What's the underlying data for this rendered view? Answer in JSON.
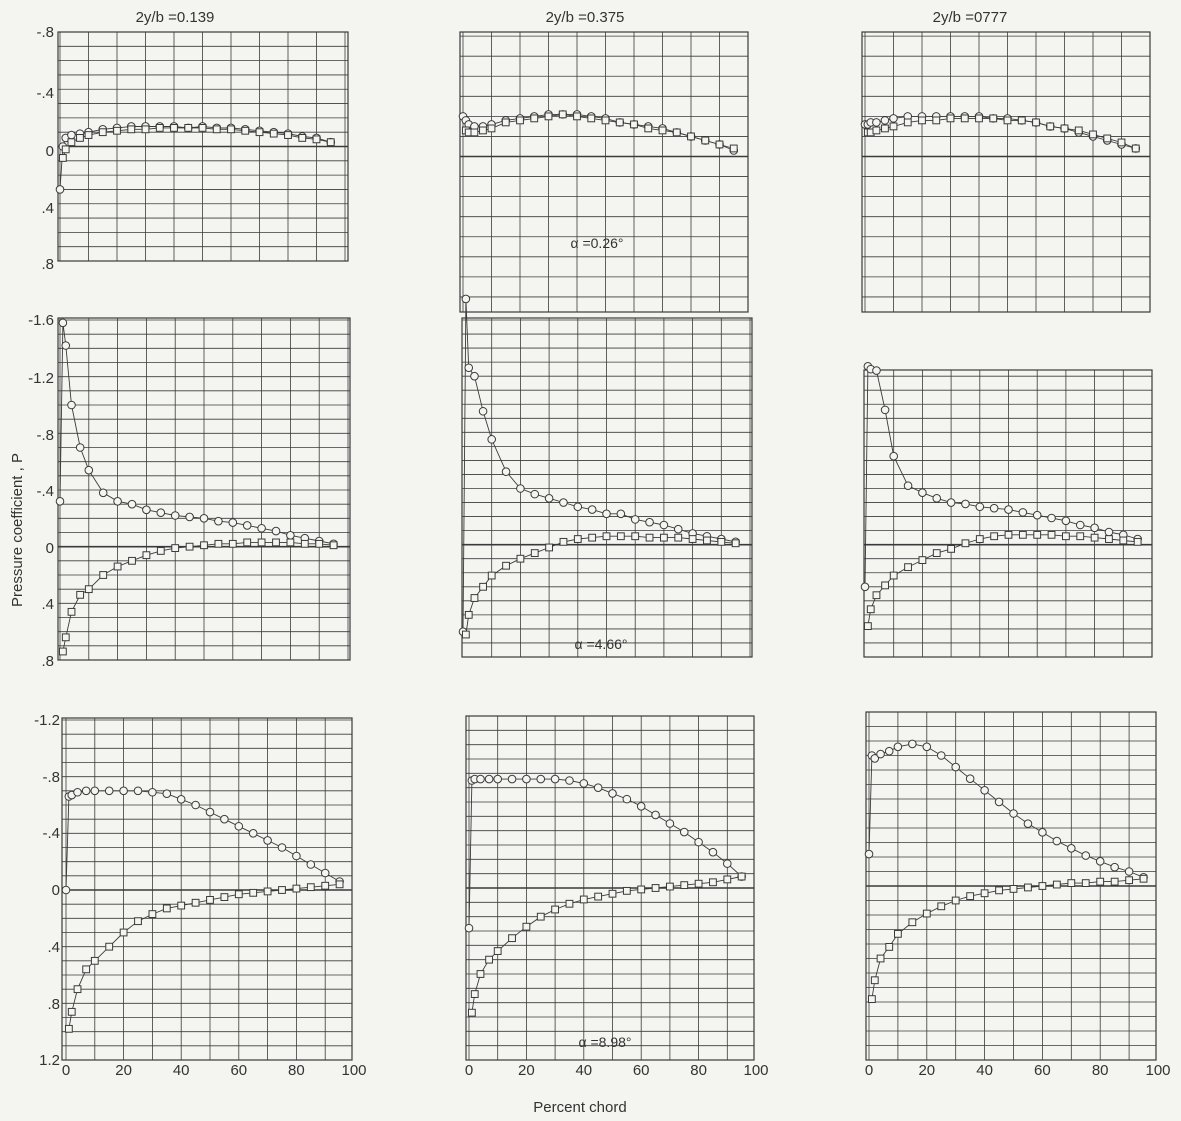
{
  "figure": {
    "ylabel": "Pressure coefficient , P",
    "xlabel": "Percent chord",
    "column_titles": [
      "2y/b =0.139",
      "2y/b =0.375",
      "2y/b =0777"
    ],
    "alpha_labels": [
      "α =0.26°",
      "α =4.66°",
      "α =8.98°"
    ],
    "x_ticks": [
      "0",
      "20",
      "40",
      "60",
      "80",
      "100"
    ],
    "y_ticks_row1": [
      "-.8",
      "-.4",
      "0",
      ".4",
      ".8"
    ],
    "y_ticks_row2": [
      "-1.6",
      "-1.2",
      "-.8",
      "-.4",
      "0",
      ".4",
      ".8"
    ],
    "y_ticks_row3": [
      "-1.2",
      "-.8",
      "-.4",
      "0",
      ".4",
      ".8",
      "1.2"
    ]
  },
  "chart_data": [
    {
      "type": "line",
      "row": 1,
      "col": 1,
      "title": "2y/b =0.139",
      "xlabel": "",
      "ylabel": "Pressure coefficient , P",
      "xlim": [
        0,
        100
      ],
      "ylim": [
        -0.8,
        0.8
      ],
      "y_axis": "inverted",
      "series": [
        {
          "marker": "circle",
          "x": [
            0,
            1,
            2,
            4,
            7,
            10,
            15,
            20,
            25,
            30,
            35,
            40,
            45,
            50,
            55,
            60,
            65,
            70,
            75,
            80,
            85,
            90,
            95
          ],
          "y": [
            0.3,
            0.0,
            -0.06,
            -0.08,
            -0.09,
            -0.1,
            -0.12,
            -0.13,
            -0.14,
            -0.14,
            -0.14,
            -0.14,
            -0.13,
            -0.14,
            -0.13,
            -0.13,
            -0.12,
            -0.11,
            -0.1,
            -0.09,
            -0.07,
            -0.06,
            -0.03
          ]
        },
        {
          "marker": "square",
          "x": [
            1,
            2,
            4,
            7,
            10,
            15,
            20,
            25,
            30,
            35,
            40,
            45,
            50,
            55,
            60,
            65,
            70,
            75,
            80,
            85,
            90,
            95
          ],
          "y": [
            0.08,
            0.02,
            -0.03,
            -0.06,
            -0.08,
            -0.1,
            -0.11,
            -0.12,
            -0.12,
            -0.13,
            -0.13,
            -0.13,
            -0.13,
            -0.12,
            -0.12,
            -0.11,
            -0.1,
            -0.09,
            -0.08,
            -0.06,
            -0.05,
            -0.03
          ]
        }
      ]
    },
    {
      "type": "line",
      "row": 1,
      "col": 2,
      "title": "2y/b =0.375",
      "xlim": [
        0,
        100
      ],
      "ylim": [
        -0.8,
        0.8
      ],
      "y_axis": "inverted",
      "series": [
        {
          "marker": "circle",
          "x": [
            0,
            1,
            2,
            4,
            7,
            10,
            15,
            20,
            25,
            30,
            35,
            40,
            45,
            50,
            55,
            60,
            65,
            70,
            75,
            80,
            85,
            90,
            95
          ],
          "y": [
            -0.2,
            -0.18,
            -0.16,
            -0.15,
            -0.15,
            -0.16,
            -0.18,
            -0.19,
            -0.2,
            -0.21,
            -0.21,
            -0.21,
            -0.2,
            -0.19,
            -0.17,
            -0.16,
            -0.15,
            -0.14,
            -0.12,
            -0.1,
            -0.08,
            -0.06,
            -0.03
          ]
        },
        {
          "marker": "square",
          "x": [
            1,
            2,
            4,
            7,
            10,
            15,
            20,
            25,
            30,
            35,
            40,
            45,
            50,
            55,
            60,
            65,
            70,
            75,
            80,
            85,
            90,
            95
          ],
          "y": [
            -0.13,
            -0.12,
            -0.12,
            -0.13,
            -0.14,
            -0.17,
            -0.18,
            -0.19,
            -0.2,
            -0.21,
            -0.2,
            -0.19,
            -0.18,
            -0.17,
            -0.16,
            -0.14,
            -0.13,
            -0.12,
            -0.1,
            -0.08,
            -0.06,
            -0.04
          ]
        }
      ]
    },
    {
      "type": "line",
      "row": 1,
      "col": 3,
      "title": "2y/b =0777",
      "xlim": [
        0,
        100
      ],
      "ylim": [
        -0.8,
        0.8
      ],
      "y_axis": "inverted",
      "series": [
        {
          "marker": "circle",
          "x": [
            0,
            1,
            2,
            4,
            7,
            10,
            15,
            20,
            25,
            30,
            35,
            40,
            45,
            50,
            55,
            60,
            65,
            70,
            75,
            80,
            85,
            90,
            95
          ],
          "y": [
            -0.16,
            -0.16,
            -0.17,
            -0.17,
            -0.18,
            -0.19,
            -0.2,
            -0.2,
            -0.2,
            -0.2,
            -0.2,
            -0.2,
            -0.19,
            -0.19,
            -0.18,
            -0.17,
            -0.15,
            -0.14,
            -0.12,
            -0.1,
            -0.08,
            -0.06,
            -0.04
          ]
        },
        {
          "marker": "square",
          "x": [
            1,
            2,
            4,
            7,
            10,
            15,
            20,
            25,
            30,
            35,
            40,
            45,
            50,
            55,
            60,
            65,
            70,
            75,
            80,
            85,
            90,
            95
          ],
          "y": [
            -0.12,
            -0.12,
            -0.13,
            -0.14,
            -0.15,
            -0.17,
            -0.18,
            -0.18,
            -0.19,
            -0.19,
            -0.19,
            -0.19,
            -0.18,
            -0.18,
            -0.17,
            -0.15,
            -0.14,
            -0.13,
            -0.11,
            -0.09,
            -0.07,
            -0.04
          ]
        }
      ]
    },
    {
      "type": "line",
      "row": 2,
      "col": 1,
      "title": "2y/b =0.139",
      "xlim": [
        0,
        100
      ],
      "ylim": [
        -1.6,
        0.8
      ],
      "y_axis": "inverted",
      "series": [
        {
          "marker": "circle",
          "x": [
            0,
            1,
            2,
            4,
            7,
            10,
            15,
            20,
            25,
            30,
            35,
            40,
            45,
            50,
            55,
            60,
            65,
            70,
            75,
            80,
            85,
            90,
            95
          ],
          "y": [
            -0.32,
            -1.58,
            -1.42,
            -1.0,
            -0.7,
            -0.54,
            -0.38,
            -0.32,
            -0.3,
            -0.26,
            -0.24,
            -0.22,
            -0.21,
            -0.2,
            -0.18,
            -0.17,
            -0.15,
            -0.13,
            -0.11,
            -0.08,
            -0.06,
            -0.04,
            -0.02
          ]
        },
        {
          "marker": "square",
          "x": [
            1,
            2,
            4,
            7,
            10,
            15,
            20,
            25,
            30,
            35,
            40,
            45,
            50,
            55,
            60,
            65,
            70,
            75,
            80,
            85,
            90,
            95
          ],
          "y": [
            0.74,
            0.64,
            0.46,
            0.34,
            0.3,
            0.2,
            0.14,
            0.1,
            0.06,
            0.03,
            0.01,
            0.0,
            -0.01,
            -0.02,
            -0.02,
            -0.03,
            -0.03,
            -0.03,
            -0.03,
            -0.02,
            -0.02,
            -0.01
          ]
        }
      ]
    },
    {
      "type": "line",
      "row": 2,
      "col": 2,
      "title": "2y/b =0.375",
      "xlim": [
        0,
        100
      ],
      "ylim": [
        -1.6,
        0.8
      ],
      "y_axis": "inverted",
      "series": [
        {
          "marker": "circle",
          "x": [
            0,
            1,
            2,
            4,
            7,
            10,
            15,
            20,
            25,
            30,
            35,
            40,
            45,
            50,
            55,
            60,
            65,
            70,
            75,
            80,
            85,
            90,
            95
          ],
          "y": [
            0.62,
            -1.75,
            -1.26,
            -1.2,
            -0.95,
            -0.75,
            -0.52,
            -0.4,
            -0.36,
            -0.33,
            -0.3,
            -0.27,
            -0.25,
            -0.22,
            -0.22,
            -0.18,
            -0.16,
            -0.14,
            -0.11,
            -0.08,
            -0.06,
            -0.04,
            -0.02
          ]
        },
        {
          "marker": "square",
          "x": [
            1,
            2,
            4,
            7,
            10,
            15,
            20,
            25,
            30,
            35,
            40,
            45,
            50,
            55,
            60,
            65,
            70,
            75,
            80,
            85,
            90,
            95
          ],
          "y": [
            0.64,
            0.5,
            0.38,
            0.3,
            0.22,
            0.15,
            0.1,
            0.06,
            0.02,
            -0.02,
            -0.04,
            -0.05,
            -0.06,
            -0.06,
            -0.06,
            -0.05,
            -0.05,
            -0.05,
            -0.04,
            -0.03,
            -0.02,
            -0.01
          ]
        }
      ]
    },
    {
      "type": "line",
      "row": 2,
      "col": 3,
      "title": "2y/b =0777",
      "xlim": [
        0,
        100
      ],
      "ylim": [
        -1.6,
        0.8
      ],
      "y_axis": "inverted",
      "series": [
        {
          "marker": "circle",
          "x": [
            0,
            1,
            2,
            4,
            7,
            10,
            15,
            20,
            25,
            30,
            35,
            40,
            45,
            50,
            55,
            60,
            65,
            70,
            75,
            80,
            85,
            90,
            95
          ],
          "y": [
            0.3,
            -1.27,
            -1.25,
            -1.24,
            -0.96,
            -0.63,
            -0.42,
            -0.37,
            -0.33,
            -0.3,
            -0.29,
            -0.27,
            -0.26,
            -0.25,
            -0.23,
            -0.21,
            -0.19,
            -0.17,
            -0.14,
            -0.12,
            -0.09,
            -0.07,
            -0.04
          ]
        },
        {
          "marker": "square",
          "x": [
            1,
            2,
            4,
            7,
            10,
            15,
            20,
            25,
            30,
            35,
            40,
            45,
            50,
            55,
            60,
            65,
            70,
            75,
            80,
            85,
            90,
            95
          ],
          "y": [
            0.58,
            0.46,
            0.36,
            0.29,
            0.22,
            0.16,
            0.11,
            0.06,
            0.03,
            -0.01,
            -0.04,
            -0.06,
            -0.07,
            -0.07,
            -0.07,
            -0.07,
            -0.06,
            -0.06,
            -0.05,
            -0.04,
            -0.03,
            -0.02
          ]
        }
      ]
    },
    {
      "type": "line",
      "row": 3,
      "col": 1,
      "title": "2y/b =0.139",
      "xlabel": "Percent chord",
      "xlim": [
        0,
        100
      ],
      "ylim": [
        -1.2,
        1.2
      ],
      "y_axis": "inverted",
      "series": [
        {
          "marker": "circle",
          "x": [
            0,
            1,
            2,
            4,
            7,
            10,
            15,
            20,
            25,
            30,
            35,
            40,
            45,
            50,
            55,
            60,
            65,
            70,
            75,
            80,
            85,
            90,
            95
          ],
          "y": [
            0.0,
            -0.66,
            -0.67,
            -0.69,
            -0.7,
            -0.7,
            -0.7,
            -0.7,
            -0.7,
            -0.69,
            -0.68,
            -0.64,
            -0.6,
            -0.55,
            -0.5,
            -0.45,
            -0.4,
            -0.35,
            -0.3,
            -0.24,
            -0.18,
            -0.12,
            -0.06
          ]
        },
        {
          "marker": "square",
          "x": [
            1,
            2,
            4,
            7,
            10,
            15,
            20,
            25,
            30,
            35,
            40,
            45,
            50,
            55,
            60,
            65,
            70,
            75,
            80,
            85,
            90,
            95
          ],
          "y": [
            0.98,
            0.86,
            0.7,
            0.56,
            0.5,
            0.4,
            0.3,
            0.22,
            0.17,
            0.13,
            0.11,
            0.09,
            0.07,
            0.05,
            0.03,
            0.02,
            0.01,
            0.0,
            -0.01,
            -0.02,
            -0.03,
            -0.04
          ]
        }
      ]
    },
    {
      "type": "line",
      "row": 3,
      "col": 2,
      "title": "2y/b =0.375",
      "xlabel": "Percent chord",
      "xlim": [
        0,
        100
      ],
      "ylim": [
        -1.2,
        1.2
      ],
      "y_axis": "inverted",
      "series": [
        {
          "marker": "circle",
          "x": [
            0,
            1,
            2,
            4,
            7,
            10,
            15,
            20,
            25,
            30,
            35,
            40,
            45,
            50,
            55,
            60,
            65,
            70,
            75,
            80,
            85,
            90,
            95
          ],
          "y": [
            0.28,
            -0.75,
            -0.76,
            -0.76,
            -0.76,
            -0.76,
            -0.76,
            -0.76,
            -0.76,
            -0.76,
            -0.75,
            -0.73,
            -0.7,
            -0.66,
            -0.62,
            -0.57,
            -0.51,
            -0.45,
            -0.39,
            -0.32,
            -0.25,
            -0.17,
            -0.08
          ]
        },
        {
          "marker": "square",
          "x": [
            1,
            2,
            4,
            7,
            10,
            15,
            20,
            25,
            30,
            35,
            40,
            45,
            50,
            55,
            60,
            65,
            70,
            75,
            80,
            85,
            90,
            95
          ],
          "y": [
            0.87,
            0.74,
            0.6,
            0.5,
            0.44,
            0.35,
            0.27,
            0.2,
            0.15,
            0.11,
            0.08,
            0.06,
            0.04,
            0.02,
            0.01,
            0.0,
            -0.01,
            -0.02,
            -0.03,
            -0.04,
            -0.06,
            -0.08
          ]
        }
      ]
    },
    {
      "type": "line",
      "row": 3,
      "col": 3,
      "title": "2y/b =0777",
      "xlabel": "Percent chord",
      "xlim": [
        0,
        100
      ],
      "ylim": [
        -1.2,
        1.2
      ],
      "y_axis": "inverted",
      "series": [
        {
          "marker": "circle",
          "x": [
            0,
            1,
            2,
            4,
            7,
            10,
            15,
            20,
            25,
            30,
            35,
            40,
            45,
            50,
            55,
            60,
            65,
            70,
            75,
            80,
            85,
            90,
            95
          ],
          "y": [
            -0.22,
            -0.9,
            -0.88,
            -0.91,
            -0.93,
            -0.96,
            -0.98,
            -0.96,
            -0.9,
            -0.82,
            -0.74,
            -0.66,
            -0.58,
            -0.5,
            -0.43,
            -0.37,
            -0.31,
            -0.26,
            -0.21,
            -0.17,
            -0.13,
            -0.1,
            -0.06
          ]
        },
        {
          "marker": "square",
          "x": [
            1,
            2,
            4,
            7,
            10,
            15,
            20,
            25,
            30,
            35,
            40,
            45,
            50,
            55,
            60,
            65,
            70,
            75,
            80,
            85,
            90,
            95
          ],
          "y": [
            0.78,
            0.65,
            0.5,
            0.42,
            0.33,
            0.25,
            0.19,
            0.14,
            0.1,
            0.07,
            0.05,
            0.03,
            0.02,
            0.01,
            0.0,
            -0.01,
            -0.02,
            -0.02,
            -0.03,
            -0.03,
            -0.04,
            -0.05
          ]
        }
      ]
    }
  ]
}
